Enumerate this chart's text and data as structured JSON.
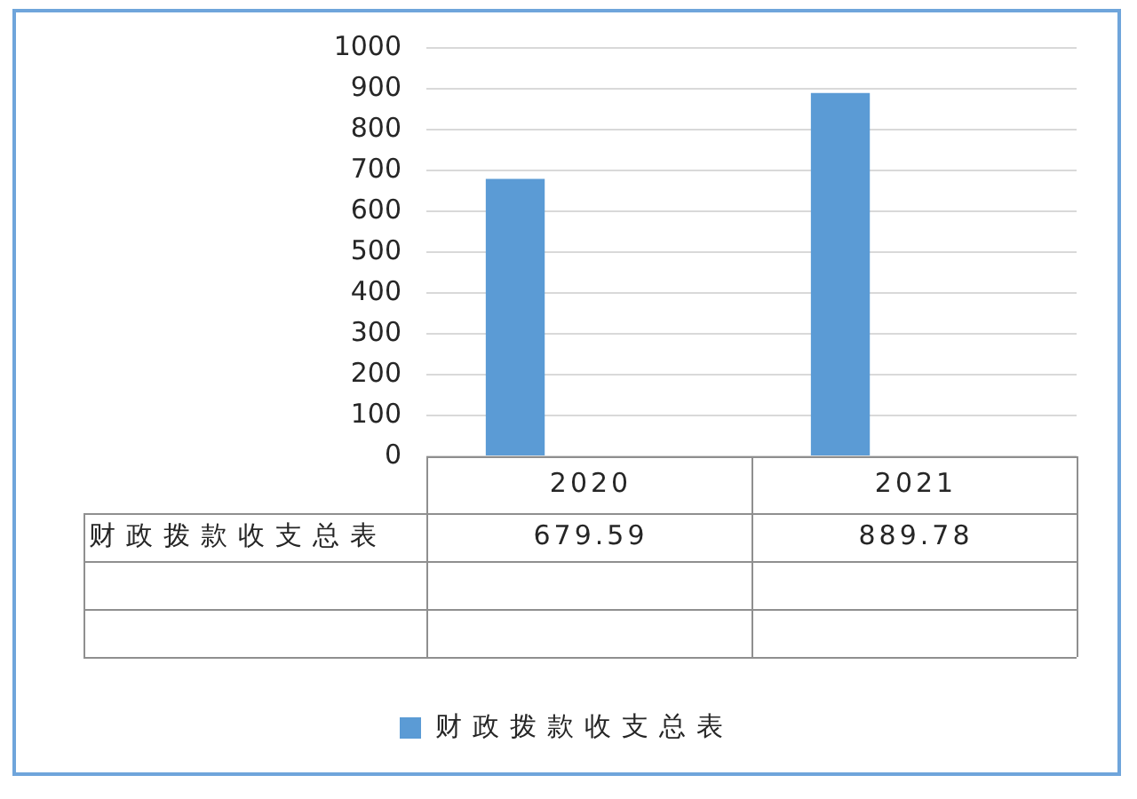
{
  "chart_data": {
    "type": "bar",
    "categories": [
      "2020",
      "2021"
    ],
    "series": [
      {
        "name": "财政拨款收支总表",
        "color": "#5b9bd5",
        "values": [
          679.59,
          889.78
        ]
      },
      {
        "values": [
          null,
          null
        ]
      },
      {
        "values": [
          null,
          null
        ]
      }
    ],
    "ylim": [
      0,
      1000
    ],
    "yticks": [
      0,
      100,
      200,
      300,
      400,
      500,
      600,
      700,
      800,
      900,
      1000
    ],
    "grid": "y",
    "legend": "bottom",
    "data_labels": true
  }
}
